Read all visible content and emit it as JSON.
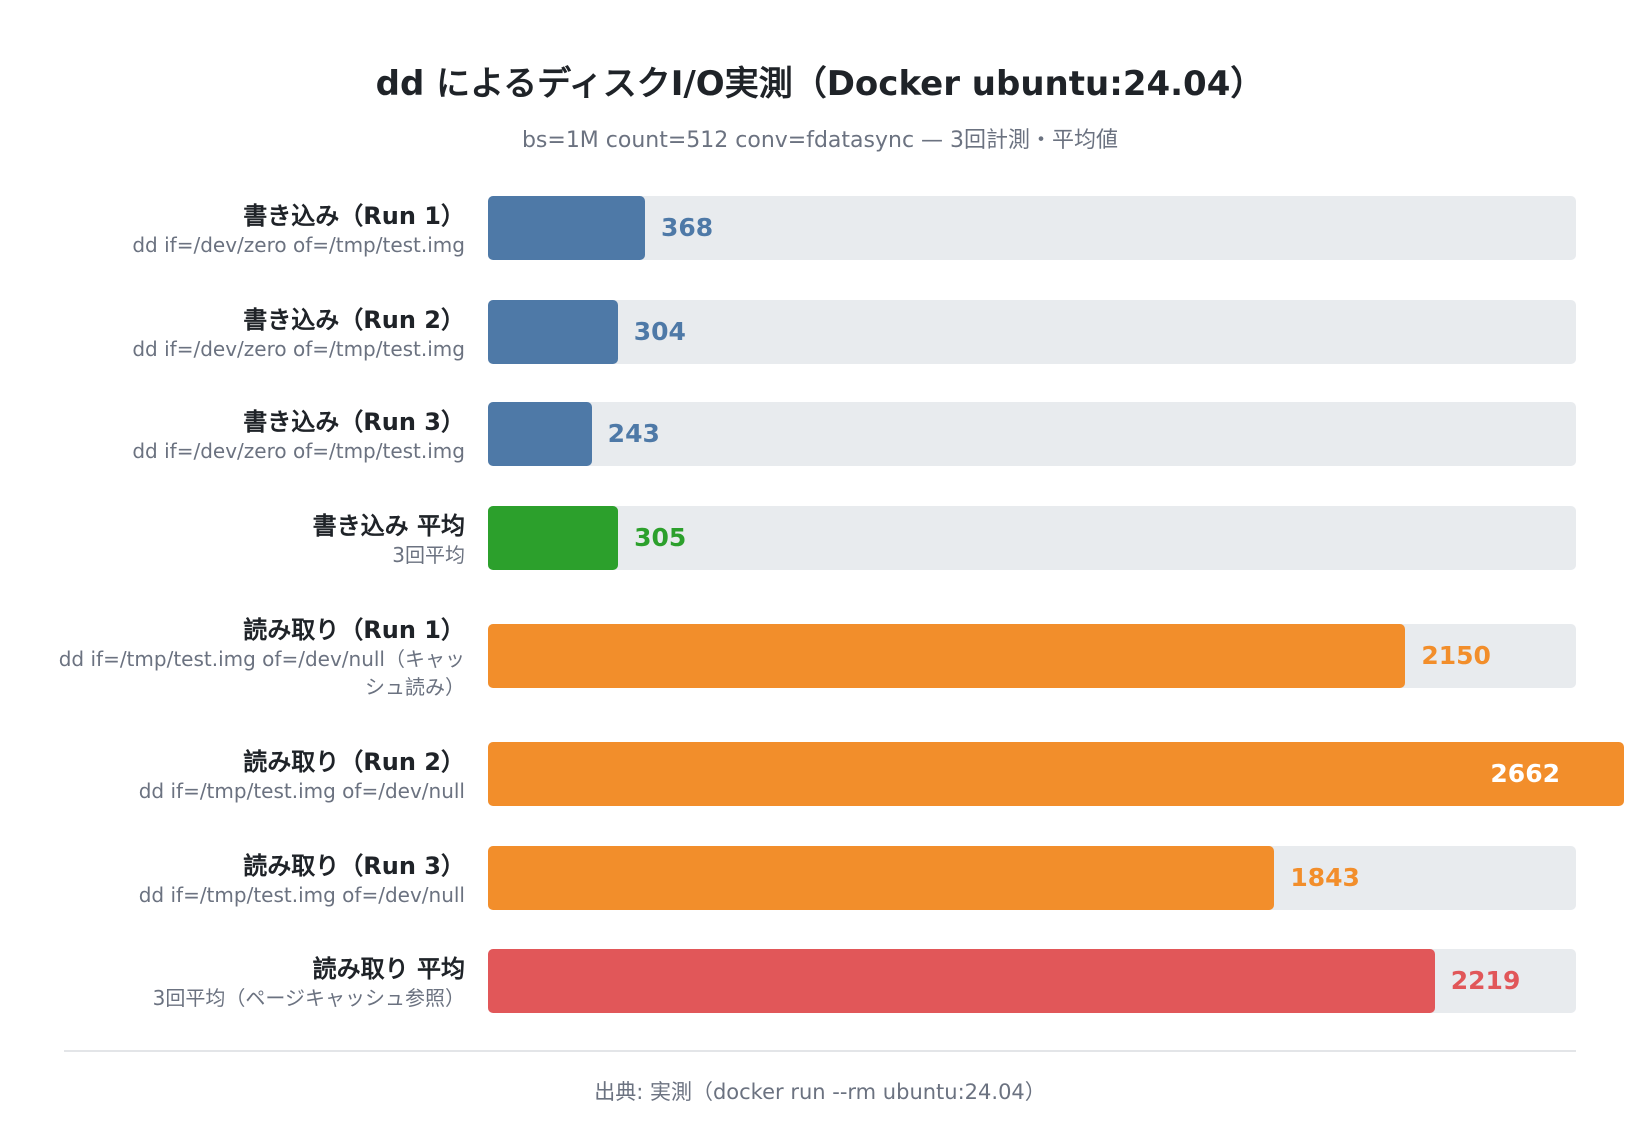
{
  "chart_data": {
    "type": "bar",
    "orientation": "horizontal",
    "title": "dd によるディスクI/O実測（Docker ubuntu:24.04）",
    "subtitle": "bs=1M count=512 conv=fdatasync — 3回計測・平均値",
    "source": "出典: 実測（docker run --rm ubuntu:24.04）",
    "xlim": [
      0,
      2550
    ],
    "grid": false,
    "legend": "none",
    "categories": [
      "書き込み（Run 1）",
      "書き込み（Run 2）",
      "書き込み（Run 3）",
      "書き込み 平均",
      "読み取り（Run 1）",
      "読み取り（Run 2）",
      "読み取り（Run 3）",
      "読み取り 平均"
    ],
    "sublabels": [
      "dd if=/dev/zero of=/tmp/test.img",
      "dd if=/dev/zero of=/tmp/test.img",
      "dd if=/dev/zero of=/tmp/test.img",
      "3回平均",
      "dd if=/tmp/test.img of=/dev/null（キャッシュ読み）",
      "dd if=/tmp/test.img of=/dev/null",
      "dd if=/tmp/test.img of=/dev/null",
      "3回平均（ページキャッシュ参照）"
    ],
    "values": [
      368,
      304,
      243,
      305,
      2150,
      2662,
      1843,
      2219
    ],
    "colors": [
      "#4e79a7",
      "#4e79a7",
      "#4e79a7",
      "#2ca02c",
      "#f28e2b",
      "#f28e2b",
      "#f28e2b",
      "#e15759"
    ]
  }
}
